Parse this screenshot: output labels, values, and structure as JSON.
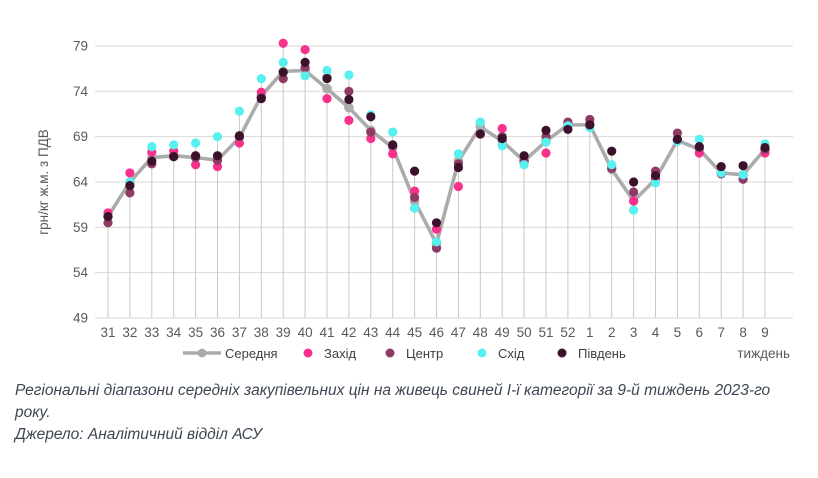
{
  "chart_data": {
    "type": "line",
    "title": "",
    "xlabel": "тиждень",
    "ylabel": "грн/кг ж.м. з ПДВ",
    "ylim": [
      49,
      79
    ],
    "y_ticks": [
      79,
      74,
      69,
      64,
      59,
      54,
      49
    ],
    "grid": "horizontal-plus-category-droplines",
    "legend_position": "bottom",
    "categories": [
      "31",
      "32",
      "33",
      "34",
      "35",
      "36",
      "37",
      "38",
      "39",
      "40",
      "41",
      "42",
      "43",
      "44",
      "45",
      "46",
      "47",
      "48",
      "49",
      "50",
      "51",
      "52",
      "1",
      "2",
      "3",
      "4",
      "5",
      "6",
      "7",
      "8",
      "9"
    ],
    "series": [
      {
        "name": "Середня",
        "key": "serednya",
        "style": "thick-line-with-markers",
        "color": "#ababab",
        "values": [
          60.2,
          64.0,
          66.7,
          66.9,
          66.7,
          66.4,
          68.9,
          73.5,
          76.2,
          76.3,
          74.3,
          72.2,
          69.7,
          67.8,
          61.9,
          57.2,
          66.3,
          70.1,
          68.5,
          66.3,
          68.5,
          70.3,
          70.3,
          65.4,
          61.9,
          64.3,
          68.6,
          67.6,
          65.0,
          64.8,
          67.6
        ]
      },
      {
        "name": "Захід",
        "key": "zahid",
        "style": "dots",
        "color": "#f9318c",
        "values": [
          60.6,
          65.0,
          67.3,
          67.4,
          65.9,
          65.7,
          68.3,
          73.9,
          79.3,
          78.6,
          73.2,
          70.8,
          68.8,
          67.1,
          63.0,
          58.8,
          63.5,
          69.3,
          69.9,
          66.3,
          67.2,
          70.2,
          70.4,
          65.8,
          61.9,
          64.3,
          68.5,
          67.2,
          65.0,
          64.8,
          67.2
        ]
      },
      {
        "name": "Центр",
        "key": "tsentr",
        "style": "dots",
        "color": "#8e3a64",
        "values": [
          59.5,
          62.8,
          66.0,
          66.8,
          66.7,
          66.4,
          69.0,
          73.3,
          75.4,
          76.6,
          75.5,
          74.0,
          69.5,
          68.0,
          62.3,
          56.7,
          66.0,
          69.3,
          69.0,
          66.3,
          69.0,
          70.6,
          70.9,
          65.5,
          62.9,
          65.2,
          69.4,
          67.8,
          64.9,
          64.3,
          67.6
        ]
      },
      {
        "name": "Схід",
        "key": "skhid",
        "style": "dots",
        "color": "#58efef",
        "values": [
          60.2,
          64.0,
          67.9,
          68.1,
          68.3,
          69.0,
          71.8,
          75.4,
          77.2,
          75.7,
          76.3,
          75.8,
          71.4,
          69.5,
          61.1,
          57.4,
          67.1,
          70.6,
          68.0,
          65.9,
          68.4,
          70.2,
          70.0,
          65.9,
          60.9,
          63.9,
          68.5,
          68.7,
          65.0,
          64.8,
          68.2
        ]
      },
      {
        "name": "Південь",
        "key": "pivden",
        "style": "dots",
        "color": "#3b112c",
        "values": [
          60.2,
          63.6,
          66.3,
          66.8,
          66.9,
          66.9,
          69.1,
          73.2,
          76.1,
          77.2,
          75.4,
          73.1,
          71.2,
          68.1,
          65.2,
          59.5,
          65.6,
          69.3,
          68.8,
          66.9,
          69.7,
          69.8,
          70.3,
          67.4,
          64.0,
          64.7,
          68.7,
          67.9,
          65.7,
          65.8,
          67.8
        ]
      }
    ],
    "colors": {
      "gridline": "#d9d9d9",
      "dropline": "#c9c9c9",
      "tick_label": "#595959",
      "legend_text": "#404040",
      "axis_title": "#595959"
    }
  },
  "axis": {
    "y_title": "грн/кг ж.м. з ПДВ",
    "x_title": "тиждень"
  },
  "caption": {
    "text": "Регіональні діапазони середніх закупівельних цін на живець свиней І-ї категорії за 9-й тиждень 2023-го року.",
    "source": "Джерело: Аналітичний відділ АСУ"
  }
}
